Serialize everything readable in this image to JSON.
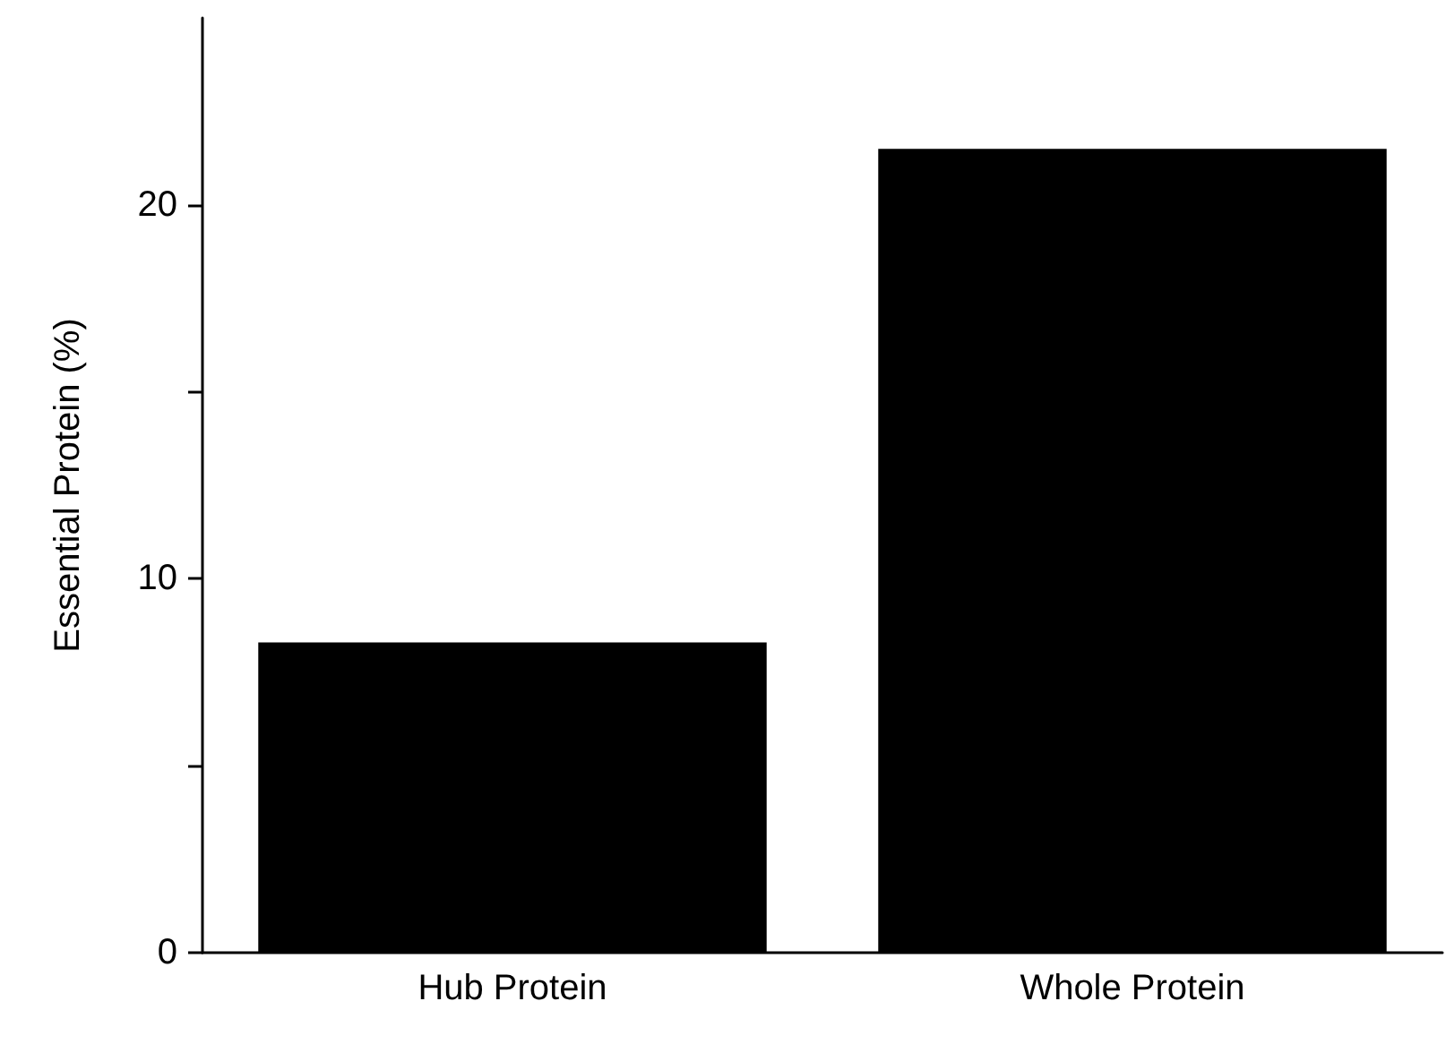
{
  "chart_data": {
    "type": "bar",
    "ylabel": "Essential Protein (%)",
    "categories": [
      "Hub Protein",
      "Whole Protein"
    ],
    "values": [
      8.3,
      21.5
    ],
    "color": "#000000",
    "ylim": [
      0,
      25
    ],
    "yticks": [
      0,
      {
        "value": 5,
        "label": null
      },
      10,
      {
        "value": 15,
        "label": null
      },
      20
    ],
    "grid": false
  }
}
